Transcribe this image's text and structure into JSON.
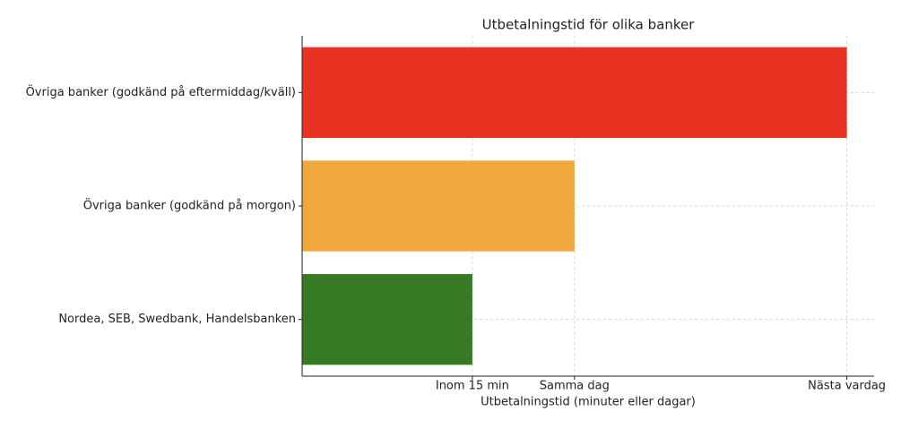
{
  "chart_data": {
    "type": "barh",
    "title": "Utbetalningstid för olika banker",
    "xlabel": "Utbetalningstid (minuter eller dagar)",
    "categories": [
      "Övriga banker (godkänd på eftermiddag/kväll)",
      "Övriga banker (godkänd på morgon)",
      "Nordea, SEB, Swedbank, Handelsbanken"
    ],
    "values": [
      48,
      24,
      15
    ],
    "colors": [
      "#e83323",
      "#f0a83d",
      "#367a24"
    ],
    "xlim": [
      0,
      50.4
    ],
    "xticks": [
      {
        "value": 15,
        "label": "Inom 15 min"
      },
      {
        "value": 24,
        "label": "Samma dag"
      },
      {
        "value": 48,
        "label": "Nästa vardag"
      }
    ],
    "grid": true
  }
}
